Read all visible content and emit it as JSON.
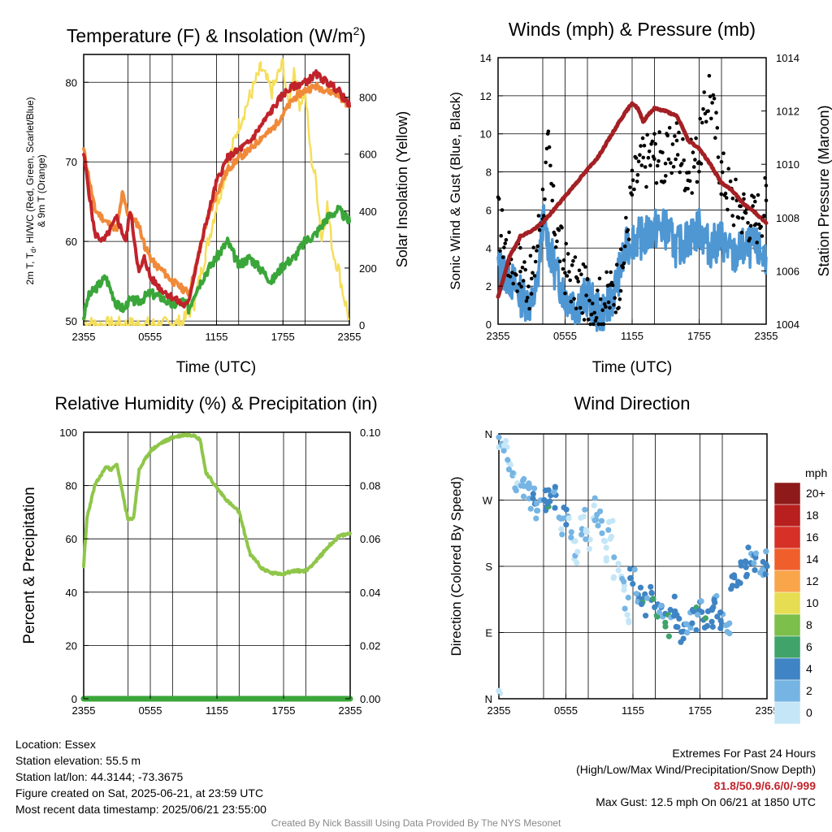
{
  "chart_data": [
    {
      "type": "line",
      "title": "Temperature (F) & Insolation (W/m²)",
      "xlabel": "Time (UTC)",
      "ylabel_left": "2m T, Td, HI/WC (Red, Green, Scarlet/Blue) & 9m T (Orange)",
      "ylabel_right": "Solar Insolation (Yellow)",
      "x_ticks": [
        "2355",
        "0555",
        "1155",
        "1755",
        "2355"
      ],
      "x_range_hours": [
        0,
        24
      ],
      "ylim_left": [
        49.5,
        83.5
      ],
      "y_ticks_left": [
        50,
        60,
        70,
        80
      ],
      "ylim_right": [
        0,
        950
      ],
      "y_ticks_right": [
        0,
        200,
        400,
        600,
        800
      ],
      "grid": true,
      "series": [
        {
          "name": "2m T",
          "color": "#c0232b",
          "axis": "left",
          "x": [
            0,
            1,
            1.8,
            3,
            3.8,
            4.2,
            5,
            5.5,
            6,
            7,
            8,
            9,
            9.4,
            10,
            11,
            12,
            13,
            14,
            15,
            16,
            17,
            18,
            19,
            20,
            21,
            22,
            23,
            24
          ],
          "y": [
            71,
            61,
            60,
            63,
            60,
            64,
            56,
            58,
            55.5,
            54,
            53,
            52,
            52,
            56,
            62,
            67.5,
            70.5,
            71.5,
            72.5,
            74.5,
            76.5,
            78.5,
            79.5,
            80,
            81,
            80,
            79,
            77
          ]
        },
        {
          "name": "9m T",
          "color": "#f08a3a",
          "axis": "left",
          "x": [
            0,
            1,
            2,
            3,
            3.5,
            4,
            5,
            5.5,
            6,
            6.5,
            7,
            8,
            9,
            9.5,
            10,
            11,
            12,
            13,
            14,
            15,
            16,
            17,
            18,
            19,
            20,
            21,
            22,
            23,
            24
          ],
          "y": [
            71.5,
            64,
            62.5,
            61.5,
            66,
            63.5,
            62,
            59.5,
            58,
            57,
            56.5,
            55,
            54,
            53.5,
            56,
            62,
            66,
            69,
            70.5,
            71.5,
            73,
            74,
            76,
            78,
            79,
            79.5,
            79,
            78.5,
            77
          ]
        },
        {
          "name": "2m Td",
          "color": "#3aa63a",
          "axis": "left",
          "x": [
            0,
            0.4,
            1,
            2,
            3,
            3.7,
            4,
            5,
            6,
            7,
            8,
            9,
            9.5,
            10,
            11,
            12,
            13,
            14,
            15,
            16,
            17,
            18,
            19,
            20,
            21,
            22,
            23,
            24
          ],
          "y": [
            50.5,
            53,
            54,
            55.5,
            52,
            51.5,
            52.5,
            52.5,
            53.5,
            53,
            52,
            52.5,
            51.5,
            53.5,
            56,
            58,
            60,
            57,
            58,
            56.5,
            55,
            57,
            58,
            60,
            61,
            63,
            64,
            62.5
          ]
        },
        {
          "name": "Solar Insolation",
          "color": "#f5de5a",
          "axis": "right",
          "x": [
            0,
            0.4,
            1,
            5,
            8,
            9,
            10,
            11,
            12,
            13,
            14,
            15,
            16,
            17,
            18,
            18.5,
            19,
            19.5,
            20,
            20.5,
            21,
            21.5,
            22,
            22.5,
            23,
            23.5,
            24
          ],
          "y": [
            40,
            5,
            0,
            0,
            0,
            10,
            80,
            250,
            420,
            560,
            700,
            800,
            900,
            820,
            920,
            760,
            900,
            780,
            820,
            600,
            500,
            300,
            420,
            260,
            200,
            100,
            20
          ]
        }
      ]
    },
    {
      "type": "scatter",
      "title": "Winds (mph) & Pressure (mb)",
      "xlabel": "Time (UTC)",
      "ylabel_left": "Sonic Wind & Gust (Blue, Black)",
      "ylabel_right": "Station Pressure (Maroon)",
      "x_ticks": [
        "2355",
        "0555",
        "1155",
        "1755",
        "2355"
      ],
      "x_range_hours": [
        0,
        24
      ],
      "ylim_left": [
        0,
        14
      ],
      "y_ticks_left": [
        0,
        2,
        4,
        6,
        8,
        10,
        12,
        14
      ],
      "ylim_right": [
        1004,
        1014
      ],
      "y_ticks_right": [
        1004,
        1006,
        1008,
        1010,
        1012,
        1014
      ],
      "grid": true,
      "series": [
        {
          "name": "Sonic Wind",
          "color": "#4f97d3",
          "axis": "left",
          "x": [
            0,
            1,
            2,
            3,
            3.5,
            4,
            5,
            6,
            7,
            8,
            9,
            10,
            11,
            11.5,
            12,
            13,
            14,
            15,
            16,
            17,
            18,
            19,
            20,
            21,
            22,
            23,
            24
          ],
          "y": [
            3,
            2.5,
            1.5,
            1,
            2,
            5.5,
            3,
            1.5,
            1,
            1.5,
            0.5,
            1,
            3,
            4,
            4.5,
            4.5,
            5,
            5,
            4,
            4.5,
            5,
            4,
            4.5,
            3.5,
            4,
            4,
            3.5
          ]
        },
        {
          "name": "Gust",
          "color": "#000000",
          "axis": "left",
          "x": [
            0,
            1,
            2,
            3,
            4,
            4.5,
            5,
            6,
            7,
            8,
            9,
            10,
            11,
            12,
            12.5,
            13,
            14,
            15,
            16,
            17,
            18,
            18.9,
            20,
            21,
            22,
            23,
            24
          ],
          "y": [
            5.5,
            3.5,
            3,
            2,
            6.5,
            9,
            5.5,
            3,
            2,
            1.5,
            1,
            1.5,
            2.5,
            7,
            8,
            8.5,
            9,
            8.5,
            9.5,
            8,
            9,
            12.5,
            8,
            6.5,
            6,
            5.5,
            6.5
          ]
        },
        {
          "name": "Station Pressure",
          "color": "#a32024",
          "axis": "right",
          "x": [
            0,
            1,
            2,
            3,
            4,
            5,
            6,
            7,
            8,
            9,
            10,
            11,
            11.5,
            12,
            12.5,
            13,
            13.5,
            14,
            15,
            16,
            16.5,
            17,
            18,
            19,
            20,
            21,
            22,
            23,
            24
          ],
          "y": [
            1005,
            1006.5,
            1007.3,
            1007.5,
            1007.8,
            1008.3,
            1008.8,
            1009.3,
            1009.8,
            1010.3,
            1011,
            1011.7,
            1012,
            1012.3,
            1012.1,
            1011.6,
            1011.9,
            1012.1,
            1012,
            1011.8,
            1011.4,
            1010.9,
            1010.6,
            1010,
            1009.3,
            1009,
            1008.5,
            1008.2,
            1007.8
          ]
        }
      ]
    },
    {
      "type": "line",
      "title": "Relative Humidity (%) & Precipitation (in)",
      "xlabel": "",
      "ylabel_left": "Percent & Precipitation",
      "x_ticks": [
        "2355",
        "0555",
        "1155",
        "1755",
        "2355"
      ],
      "x_range_hours": [
        0,
        24
      ],
      "ylim_left": [
        0,
        100
      ],
      "y_ticks_left": [
        0,
        20,
        40,
        60,
        80,
        100
      ],
      "ylim_right": [
        0,
        0.1
      ],
      "y_ticks_right": [
        "0.00",
        "0.02",
        "0.04",
        "0.06",
        "0.08",
        "0.10"
      ],
      "grid": true,
      "series": [
        {
          "name": "Relative Humidity",
          "color": "#8fc64a",
          "axis": "left",
          "x": [
            0,
            0.3,
            1,
            2,
            2.5,
            3,
            3.5,
            4,
            4.5,
            5,
            6,
            7,
            8,
            9,
            10,
            10.5,
            11,
            12,
            13,
            14,
            15,
            15.5,
            16,
            17,
            18,
            19,
            20,
            21,
            22,
            23,
            24
          ],
          "y": [
            50,
            68,
            80,
            87,
            86,
            88,
            77,
            67,
            68,
            86,
            93,
            96,
            98,
            99,
            99,
            97,
            85,
            79,
            74,
            70,
            54,
            52,
            49,
            47,
            47,
            48,
            48,
            52,
            57,
            61,
            62
          ]
        },
        {
          "name": "Precipitation",
          "color": "#3aa63a",
          "axis": "right",
          "x": [
            0,
            24
          ],
          "y": [
            0,
            0
          ]
        }
      ]
    },
    {
      "type": "scatter",
      "title": "Wind Direction",
      "xlabel": "",
      "ylabel_left": "Direction (Colored By Speed)",
      "x_ticks": [
        "2355",
        "0555",
        "1155",
        "1755",
        "2355"
      ],
      "x_range_hours": [
        0,
        24
      ],
      "ylim_left": [
        0,
        360
      ],
      "y_tick_labels": [
        "N",
        "E",
        "S",
        "W",
        "N"
      ],
      "grid": true,
      "colorbar": {
        "title": "mph",
        "labels": [
          "20+",
          "18",
          "16",
          "14",
          "12",
          "10",
          "8",
          "6",
          "4",
          "2",
          "0"
        ],
        "colors": [
          "#8e1a1a",
          "#b81f1f",
          "#d73027",
          "#ef5f2c",
          "#f9a54a",
          "#e6dd52",
          "#7cbf4a",
          "#3fa36a",
          "#3f84c4",
          "#76b5e3",
          "#c4e6f7"
        ]
      },
      "series": [
        {
          "name": "Direction",
          "axis": "left",
          "x": [
            0,
            0.5,
            1,
            1.5,
            2,
            2.5,
            3,
            3.5,
            4,
            4.5,
            5,
            5.5,
            6,
            6.5,
            7,
            7.5,
            8,
            8.5,
            9,
            9.5,
            10,
            10.5,
            11,
            11.5,
            12,
            12.5,
            13,
            13.5,
            14,
            14.5,
            15,
            15.5,
            16,
            16.5,
            17,
            17.5,
            18,
            18.5,
            19,
            19.5,
            20,
            20.5,
            21,
            21.5,
            22,
            22.5,
            23,
            23.5,
            24
          ],
          "y": [
            355,
            345,
            320,
            300,
            290,
            280,
            270,
            260,
            270,
            275,
            275,
            230,
            250,
            230,
            200,
            240,
            215,
            260,
            240,
            200,
            230,
            180,
            150,
            120,
            160,
            140,
            130,
            140,
            120,
            110,
            100,
            125,
            110,
            90,
            100,
            110,
            120,
            105,
            115,
            125,
            110,
            100,
            160,
            170,
            180,
            190,
            185,
            180,
            185
          ],
          "speed": [
            1,
            1,
            2,
            2,
            3,
            3,
            3,
            2,
            4,
            5,
            4,
            2,
            3,
            1,
            1,
            2,
            1,
            1,
            2,
            1,
            1,
            1,
            1,
            1,
            4,
            4,
            5,
            4,
            5,
            4,
            6,
            4,
            4,
            4,
            3,
            5,
            4,
            5,
            4,
            4,
            4,
            3,
            4,
            4,
            4,
            4,
            4,
            4,
            4
          ]
        }
      ]
    }
  ],
  "info": {
    "location": "Location: Essex",
    "elevation": "Station elevation: 55.5 m",
    "latlon": "Station lat/lon: 44.3144; -73.3675",
    "created": "Figure created on Sat, 2025-06-21, at 23:59 UTC",
    "recent": "Most recent data timestamp: 2025/06/21 23:55:00"
  },
  "extremes": {
    "title": "Extremes For Past 24 Hours",
    "subtitle": "(High/Low/Max Wind/Precipitation/Snow Depth)",
    "values": "81.8/50.9/6.6/0/-999",
    "gust": "Max Gust: 12.5 mph On 06/21 at 1850 UTC"
  },
  "credit": "Created By Nick Bassill Using Data Provided By The NYS Mesonet"
}
